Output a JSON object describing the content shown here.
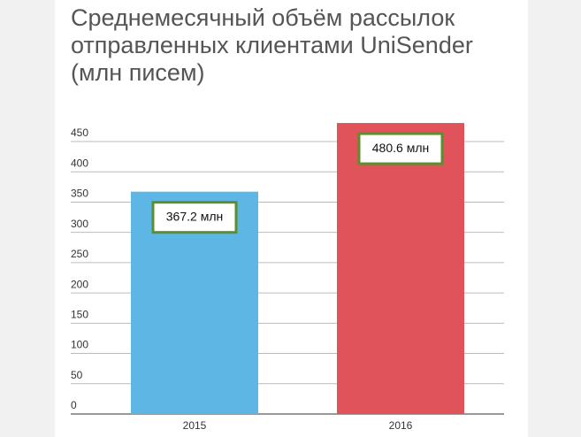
{
  "chart_data": {
    "type": "bar",
    "title": [
      "Среднемесячный объём рассылок",
      "отправленных клиентами UniSender",
      "(млн писем)"
    ],
    "categories": [
      "2015",
      "2016"
    ],
    "values": [
      367.2,
      480.6
    ],
    "value_labels": [
      "367.2 млн",
      "480.6 млн"
    ],
    "colors": [
      "#5db6e4",
      "#e0535b"
    ],
    "ylim": [
      0,
      450
    ],
    "yticks": [
      0,
      50,
      100,
      150,
      200,
      250,
      300,
      350,
      400,
      450
    ],
    "grid": true
  }
}
